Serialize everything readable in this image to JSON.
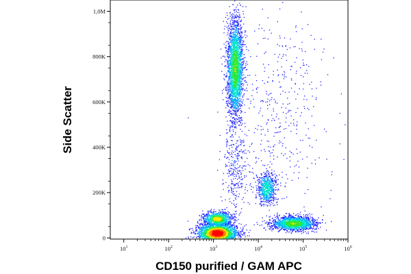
{
  "chart_data": {
    "type": "scatter",
    "subtype": "flow-cytometry density dot plot",
    "xlabel": "CD150 purified / GAM APC",
    "ylabel": "Side Scatter",
    "x_scale": "log",
    "xlim": [
      5,
      1000000
    ],
    "y_scale": "linear",
    "ylim": [
      -5000,
      1050000
    ],
    "x_ticks": [
      {
        "value": 10,
        "label": "10",
        "sup": "1"
      },
      {
        "value": 100,
        "label": "10",
        "sup": "2"
      },
      {
        "value": 1000,
        "label": "10",
        "sup": "3"
      },
      {
        "value": 10000,
        "label": "10",
        "sup": "4"
      },
      {
        "value": 100000,
        "label": "10",
        "sup": "5"
      },
      {
        "value": 1000000,
        "label": "10",
        "sup": "6"
      }
    ],
    "y_ticks": [
      {
        "value": 0,
        "label": "0"
      },
      {
        "value": 200000,
        "label": "200K"
      },
      {
        "value": 400000,
        "label": "400K"
      },
      {
        "value": 600000,
        "label": "600K"
      },
      {
        "value": 800000,
        "label": "800K"
      },
      {
        "value": 1000000,
        "label": "1,0M"
      }
    ],
    "grid": false,
    "legend": "none",
    "density_colors": [
      "#1a1aff",
      "#00aaff",
      "#00e6c8",
      "#33e633",
      "#ffe600",
      "#ff7f00",
      "#ff0000"
    ],
    "populations": [
      {
        "x_center": 3000,
        "y_center": 750000,
        "x_spread_log": 0.09,
        "y_spread": 110000,
        "y_min": 480000,
        "y_max": 1050000,
        "count": 2600,
        "peak_density": 0.55
      },
      {
        "x_center": 1200,
        "y_center": 22000,
        "x_spread_log": 0.22,
        "y_spread": 22000,
        "y_min": 0,
        "y_max": 120000,
        "count": 2600,
        "peak_density": 1.0
      },
      {
        "x_center": 1200,
        "y_center": 85000,
        "x_spread_log": 0.16,
        "y_spread": 16000,
        "y_min": 30000,
        "y_max": 130000,
        "count": 900,
        "peak_density": 0.65
      },
      {
        "x_center": 60000,
        "y_center": 65000,
        "x_spread_log": 0.25,
        "y_spread": 16000,
        "y_min": 20000,
        "y_max": 130000,
        "count": 1500,
        "peak_density": 0.55
      },
      {
        "x_center": 15000,
        "y_center": 220000,
        "x_spread_log": 0.1,
        "y_spread": 35000,
        "y_min": 140000,
        "y_max": 330000,
        "count": 650,
        "peak_density": 0.4
      },
      {
        "x_center": 3000,
        "y_center": 320000,
        "x_spread_log": 0.15,
        "y_spread": 120000,
        "y_min": 100000,
        "y_max": 520000,
        "count": 350,
        "peak_density": 0.12
      },
      {
        "x_center": 30000,
        "y_center": 550000,
        "x_spread_log": 0.5,
        "y_spread": 250000,
        "y_min": 100000,
        "y_max": 1050000,
        "count": 450,
        "peak_density": 0.08
      }
    ]
  }
}
